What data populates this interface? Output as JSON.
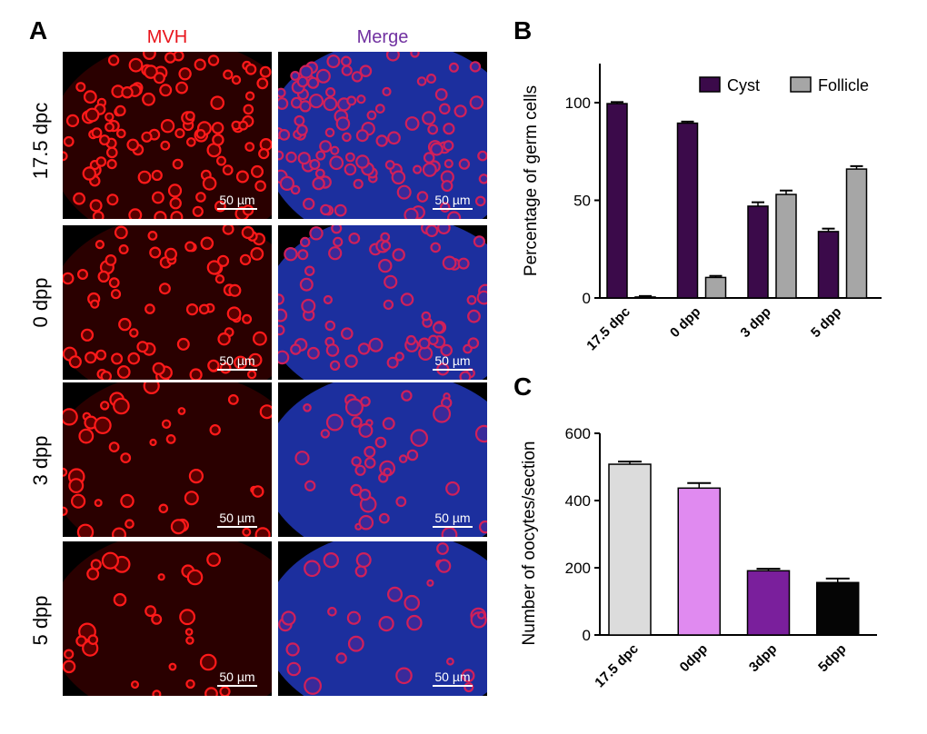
{
  "panel_a": {
    "letter": "A",
    "columns": [
      "MVH",
      "Merge"
    ],
    "column_colors": [
      "#e8141b",
      "#7030a0"
    ],
    "rows": [
      "17.5 dpc",
      "0 dpp",
      "3 dpp",
      "5 dpp"
    ],
    "scale_bar": "50 µm"
  },
  "panel_b": {
    "letter": "B"
  },
  "panel_c": {
    "letter": "C"
  },
  "chart_data": [
    {
      "type": "bar",
      "categories": [
        "17.5 dpc",
        "0 dpp",
        "3 dpp",
        "5 dpp"
      ],
      "series": [
        {
          "name": "Cyst",
          "values": [
            99.5,
            89.5,
            47,
            34
          ],
          "errors": [
            0.8,
            0.8,
            2,
            1.5
          ],
          "color": "#3b0a4a"
        },
        {
          "name": "Follicle",
          "values": [
            0.5,
            10.5,
            53,
            66
          ],
          "errors": [
            0.5,
            0.8,
            2,
            1.5
          ],
          "color": "#a6a6a6"
        }
      ],
      "ylabel": "Percentage of germ cells",
      "yticks": [
        0,
        50,
        100
      ],
      "ylim": [
        0,
        120
      ],
      "legend": "top-right"
    },
    {
      "type": "bar",
      "categories": [
        "17.5 dpc",
        "0dpp",
        "3dpp",
        "5dpp"
      ],
      "values": [
        508,
        437,
        191,
        156
      ],
      "errors": [
        8,
        15,
        6,
        12
      ],
      "colors": [
        "#dcdcdc",
        "#e08af0",
        "#7a1f9c",
        "#050505"
      ],
      "ylabel": "Number of oocytes/section",
      "yticks": [
        0,
        200,
        400,
        600
      ],
      "ylim": [
        0,
        600
      ]
    }
  ]
}
